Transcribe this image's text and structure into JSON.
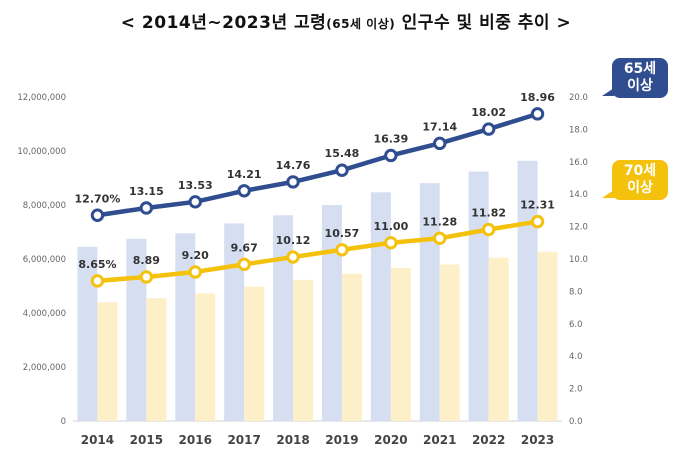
{
  "title": {
    "prefix": "<  2014년~2023년 고령",
    "small": "(65세 이상)",
    "suffix": " 인구수 및 비중 추이  >"
  },
  "callouts": {
    "age65": [
      "65세",
      "이상"
    ],
    "age70": [
      "70세",
      "이상"
    ]
  },
  "colors": {
    "line65": "#2f4d8f",
    "line70": "#f4c20d",
    "bar65": "#d6dff2",
    "bar70": "#fdefc7"
  },
  "chart_data": {
    "type": "bar+line",
    "categories": [
      "2014",
      "2015",
      "2016",
      "2017",
      "2018",
      "2019",
      "2020",
      "2021",
      "2022",
      "2023"
    ],
    "left_axis": {
      "ylim": [
        0,
        12000000
      ],
      "ticks": [
        "0",
        "2,000,000",
        "4,000,000",
        "6,000,000",
        "8,000,000",
        "10,000,000",
        "12,000,000"
      ]
    },
    "right_axis": {
      "ylim": [
        0,
        20
      ],
      "ticks": [
        "0.0",
        "2.0",
        "4.0",
        "6.0",
        "8.0",
        "10.0",
        "12.0",
        "14.0",
        "16.0",
        "18.0",
        "20.0"
      ]
    },
    "bars": [
      {
        "name": "65세 이상 인구수",
        "values": [
          6450000,
          6750000,
          6950000,
          7320000,
          7620000,
          8000000,
          8470000,
          8810000,
          9240000,
          9640000
        ]
      },
      {
        "name": "70세 이상 인구수",
        "values": [
          4400000,
          4550000,
          4720000,
          4980000,
          5230000,
          5450000,
          5670000,
          5800000,
          6050000,
          6270000
        ]
      }
    ],
    "series": [
      {
        "name": "65세 이상 비중",
        "axis": "right",
        "values": [
          12.7,
          13.15,
          13.53,
          14.21,
          14.76,
          15.48,
          16.39,
          17.14,
          18.02,
          18.96
        ],
        "labels": [
          "12.70%",
          "13.15",
          "13.53",
          "14.21",
          "14.76",
          "15.48",
          "16.39",
          "17.14",
          "18.02",
          "18.96"
        ]
      },
      {
        "name": "70세 이상 비중",
        "axis": "right",
        "values": [
          8.65,
          8.89,
          9.2,
          9.67,
          10.12,
          10.57,
          11.0,
          11.28,
          11.82,
          12.31
        ],
        "labels": [
          "8.65%",
          "8.89",
          "9.20",
          "9.67",
          "10.12",
          "10.57",
          "11.00",
          "11.28",
          "11.82",
          "12.31"
        ]
      }
    ]
  }
}
